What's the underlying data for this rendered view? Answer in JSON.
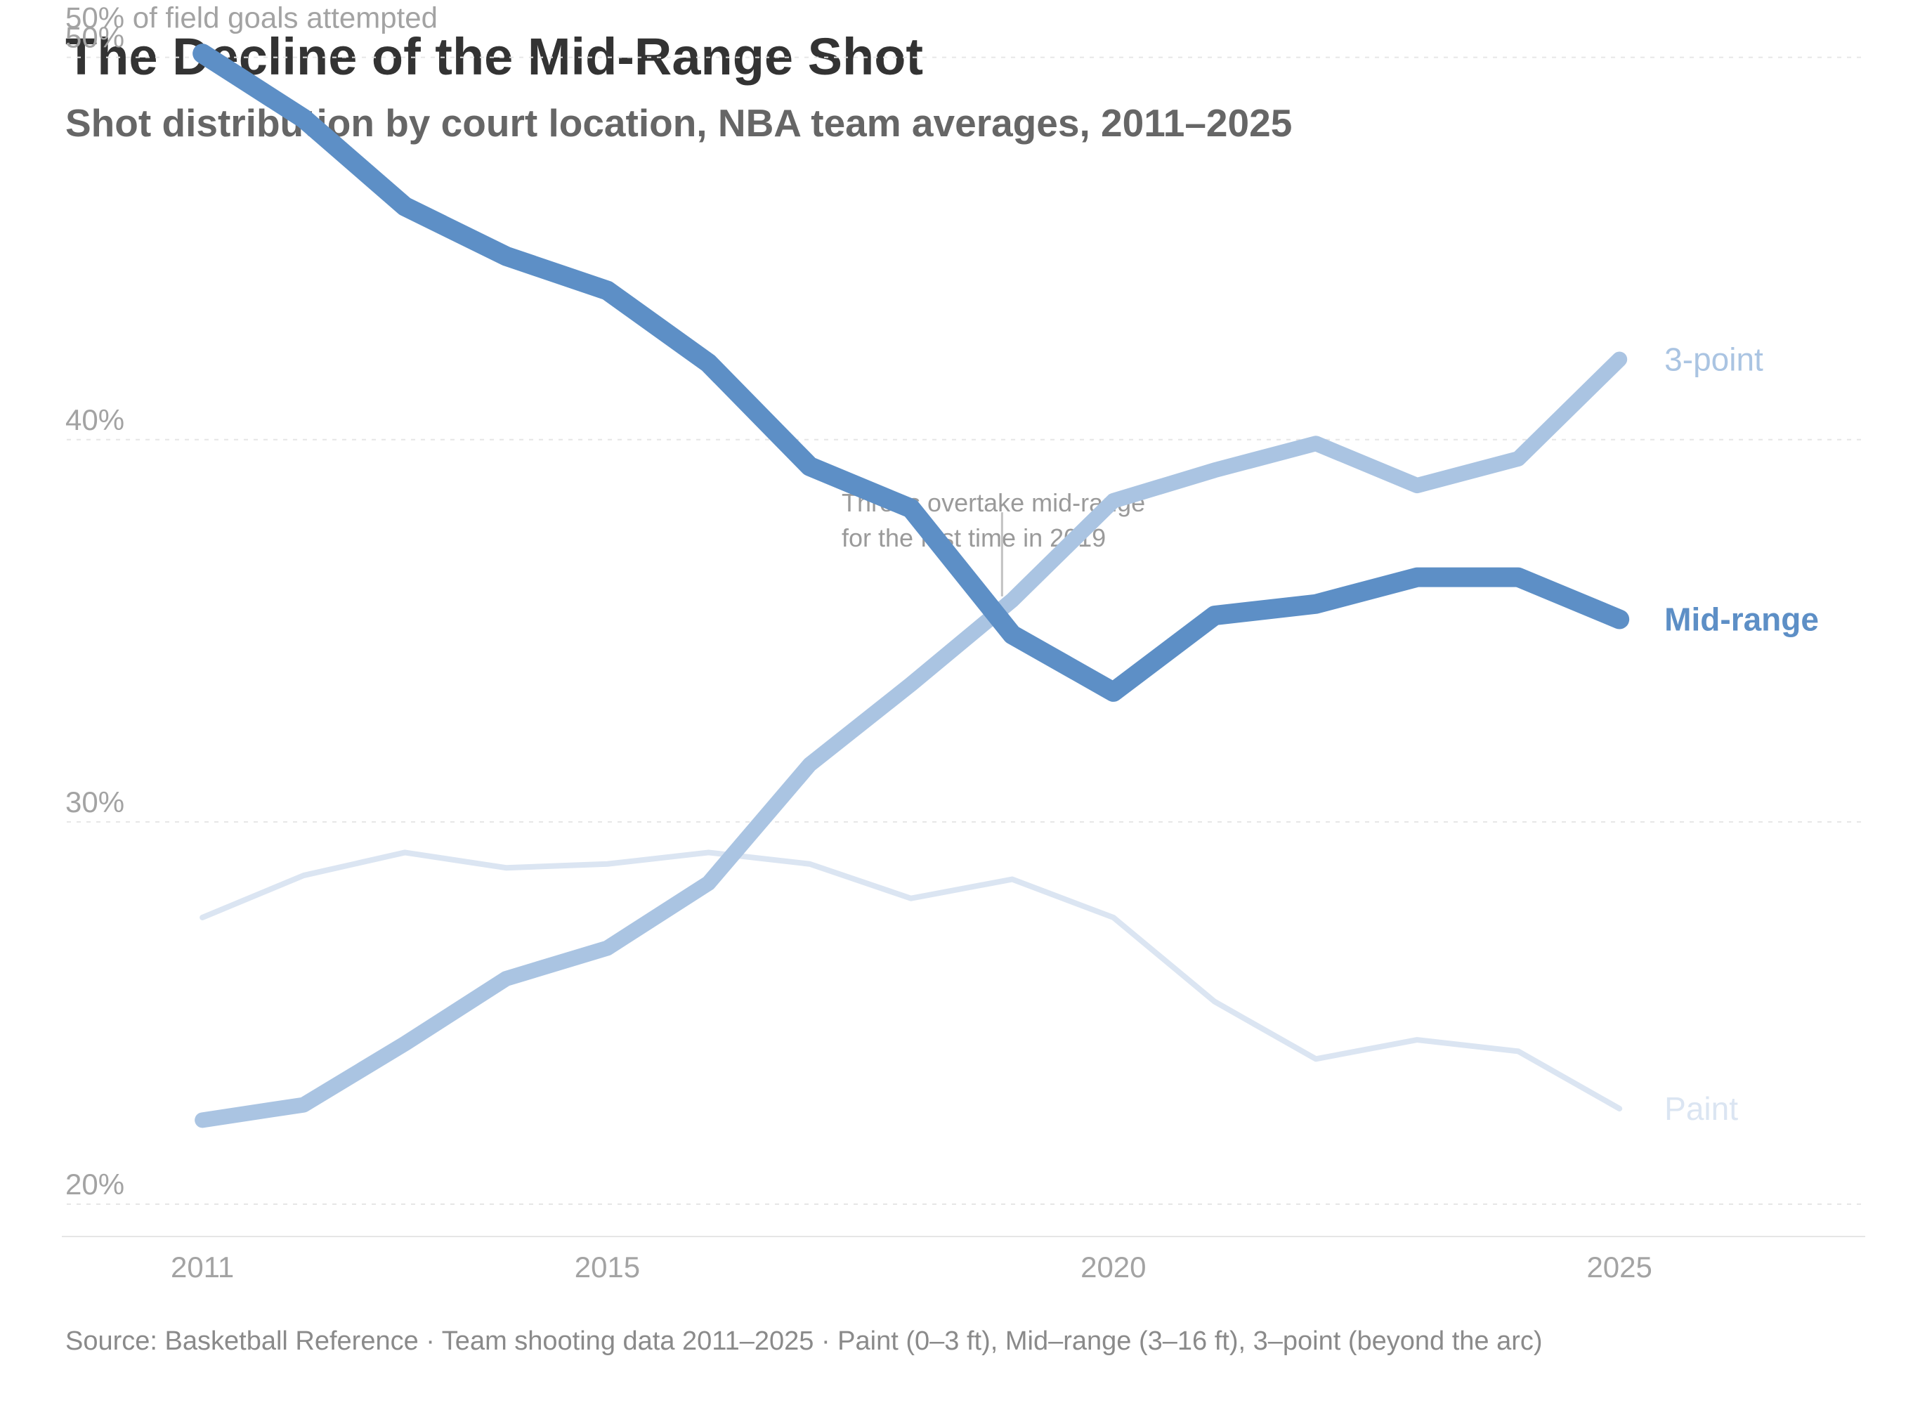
{
  "title": "The Decline of the Mid-Range Shot",
  "subtitle": "Shot distribution by court location, NBA team averages, 2011–2025",
  "source": "Source: Basketball Reference · Team shooting data 2011–2025 · Paint (0–3 ft), Mid–range (3–16 ft), 3–point (beyond the arc)",
  "chart_data": {
    "type": "line",
    "ylabel": "of field goals attempted",
    "x": [
      2011,
      2012,
      2013,
      2014,
      2015,
      2016,
      2017,
      2018,
      2019,
      2020,
      2021,
      2022,
      2023,
      2024,
      2025
    ],
    "xticks": [
      {
        "value": 2011,
        "label": "2011"
      },
      {
        "value": 2015,
        "label": "2015"
      },
      {
        "value": 2020,
        "label": "2020"
      },
      {
        "value": 2025,
        "label": "2025"
      }
    ],
    "yticks": [
      {
        "value": 50,
        "label": "50%"
      },
      {
        "value": 40,
        "label": "40%"
      },
      {
        "value": 30,
        "label": "30%"
      },
      {
        "value": 20,
        "label": "20%"
      }
    ],
    "xlim": [
      2009,
      2027.9
    ],
    "ylim": [
      14.8,
      51.5
    ],
    "grid": true,
    "legend": "direct labels at line ends (right)",
    "series": [
      {
        "name": "Paint",
        "color": "#dbe5f2",
        "values": [
          27.5,
          28.6,
          29.2,
          28.8,
          28.9,
          29.2,
          28.9,
          28.0,
          28.5,
          27.5,
          25.3,
          23.8,
          24.3,
          24.0,
          22.5
        ]
      },
      {
        "name": "3-point",
        "color": "#aac4e2",
        "values": [
          22.2,
          22.6,
          24.2,
          25.9,
          26.7,
          28.4,
          31.5,
          33.6,
          35.8,
          38.4,
          39.2,
          39.9,
          38.8,
          39.5,
          42.1
        ]
      },
      {
        "name": "Mid-range",
        "color": "#5d8fc6",
        "values": [
          50.1,
          48.4,
          46.1,
          44.8,
          43.9,
          42.0,
          39.3,
          38.2,
          34.9,
          33.4,
          35.4,
          35.7,
          36.4,
          36.4,
          35.3
        ]
      }
    ],
    "annotation": {
      "lines": [
        "Threes overtake mid-range",
        "for the first time in 2019"
      ],
      "x": 2018.9,
      "y_from": 38.1,
      "y_to": 35.9
    }
  }
}
